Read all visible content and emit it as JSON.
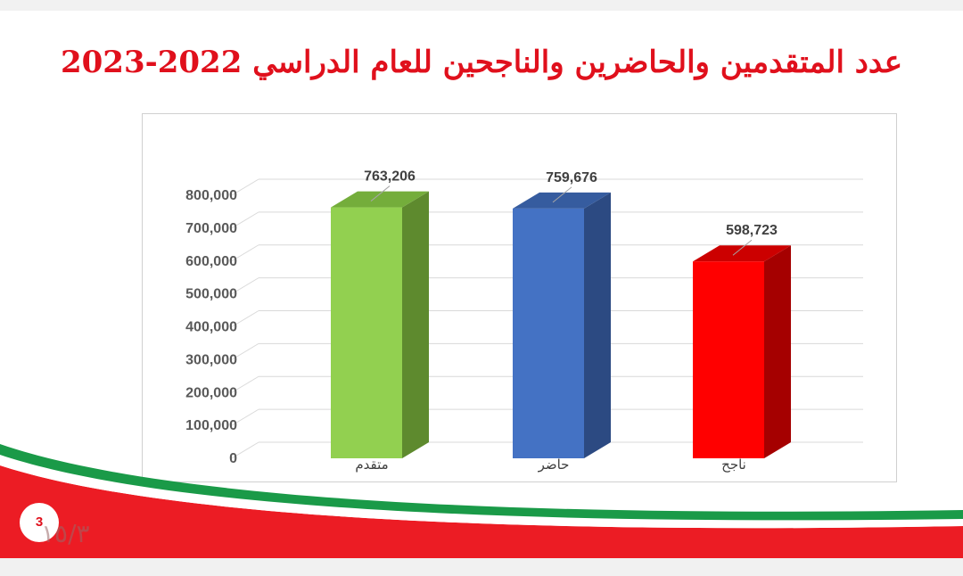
{
  "slide": {
    "title": "عدد المتقدمين والحاضرين والناجحين للعام الدراسي 2022-2023",
    "page_number": "3",
    "page_ghost": "١٥/٣"
  },
  "chart_data": {
    "type": "bar",
    "style": "3d-column",
    "title": "",
    "categories": [
      "متقدم",
      "حاضر",
      "ناجح"
    ],
    "values": [
      763206,
      759676,
      598723
    ],
    "data_labels": [
      "763,206",
      "759,676",
      "598,723"
    ],
    "y_ticks": [
      "0",
      "100,000",
      "200,000",
      "300,000",
      "400,000",
      "500,000",
      "600,000",
      "700,000",
      "800,000"
    ],
    "ylim": [
      0,
      800000
    ],
    "grid": true,
    "legend": "none",
    "colors": {
      "front": [
        "#92d050",
        "#4472c4",
        "#ff0000"
      ],
      "side": [
        "#5e8a2e",
        "#2c4a82",
        "#a50000"
      ],
      "top": [
        "#74ad3b",
        "#365c9f",
        "#cc0000"
      ]
    }
  },
  "theme": {
    "title_color": "#e0101c",
    "footer_red": "#ec1c24",
    "footer_green": "#1a9a48"
  }
}
